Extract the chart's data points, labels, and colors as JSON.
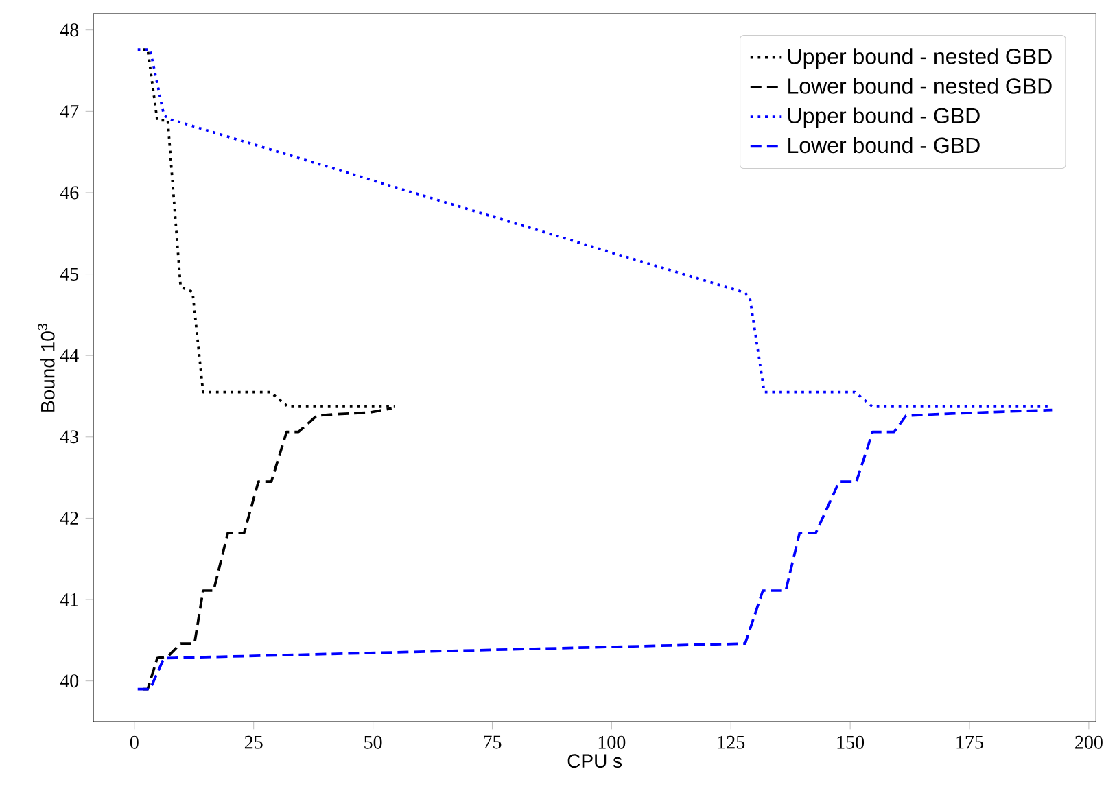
{
  "chart_data": {
    "type": "line",
    "xlabel": "CPU s",
    "ylabel": "Bound 10$^{3}$",
    "xlim": [
      -8.6,
      201.5
    ],
    "ylim": [
      39.5,
      48.2
    ],
    "xticks": [
      0,
      25,
      50,
      75,
      100,
      125,
      150,
      175,
      200
    ],
    "yticks": [
      40,
      41,
      42,
      43,
      44,
      45,
      46,
      47,
      48
    ],
    "legend": "top right",
    "grid": false,
    "marker": "none",
    "series": [
      {
        "name": "Upper bound - nested GBD",
        "color": "#000000",
        "line_style": "dotted",
        "x": [
          1.8,
          2.8,
          4.8,
          7,
          9.7,
          12.2,
          14.4,
          28.5,
          32.2,
          54.5
        ],
        "values": [
          47.76,
          47.76,
          46.89,
          46.89,
          44.84,
          44.78,
          43.55,
          43.55,
          43.37,
          43.37
        ]
      },
      {
        "name": "Lower bound - nested GBD",
        "color": "#000000",
        "line_style": "dashed",
        "x": [
          1.8,
          2.8,
          4.8,
          7,
          9.7,
          12.6,
          14.4,
          16.6,
          19.6,
          23,
          26,
          28.7,
          31.9,
          34.4,
          38.2,
          42.6,
          49.3,
          53.9
        ],
        "values": [
          39.9,
          39.9,
          40.28,
          40.3,
          40.46,
          40.46,
          41.11,
          41.11,
          41.82,
          41.82,
          42.45,
          42.45,
          43.06,
          43.06,
          43.26,
          43.28,
          43.3,
          43.35
        ]
      },
      {
        "name": "Upper bound - GBD",
        "color": "#0000ff",
        "line_style": "dotted",
        "x": [
          0.7,
          3.3,
          6.2,
          7.7,
          128,
          129,
          132,
          151,
          154.7,
          192.3
        ],
        "values": [
          47.76,
          47.76,
          46.95,
          46.9,
          44.77,
          44.7,
          43.55,
          43.55,
          43.37,
          43.37
        ]
      },
      {
        "name": "Lower bound - GBD",
        "color": "#0000ff",
        "line_style": "dashed",
        "x": [
          0.7,
          3.3,
          6.2,
          128,
          131.7,
          136.5,
          139.4,
          142.8,
          147.7,
          151.3,
          154.7,
          159.2,
          161.7,
          168.8,
          182.2,
          192.3
        ],
        "values": [
          39.9,
          39.9,
          40.28,
          40.46,
          41.11,
          41.11,
          41.82,
          41.82,
          42.45,
          42.45,
          43.06,
          43.06,
          43.26,
          43.28,
          43.31,
          43.33
        ]
      }
    ]
  }
}
